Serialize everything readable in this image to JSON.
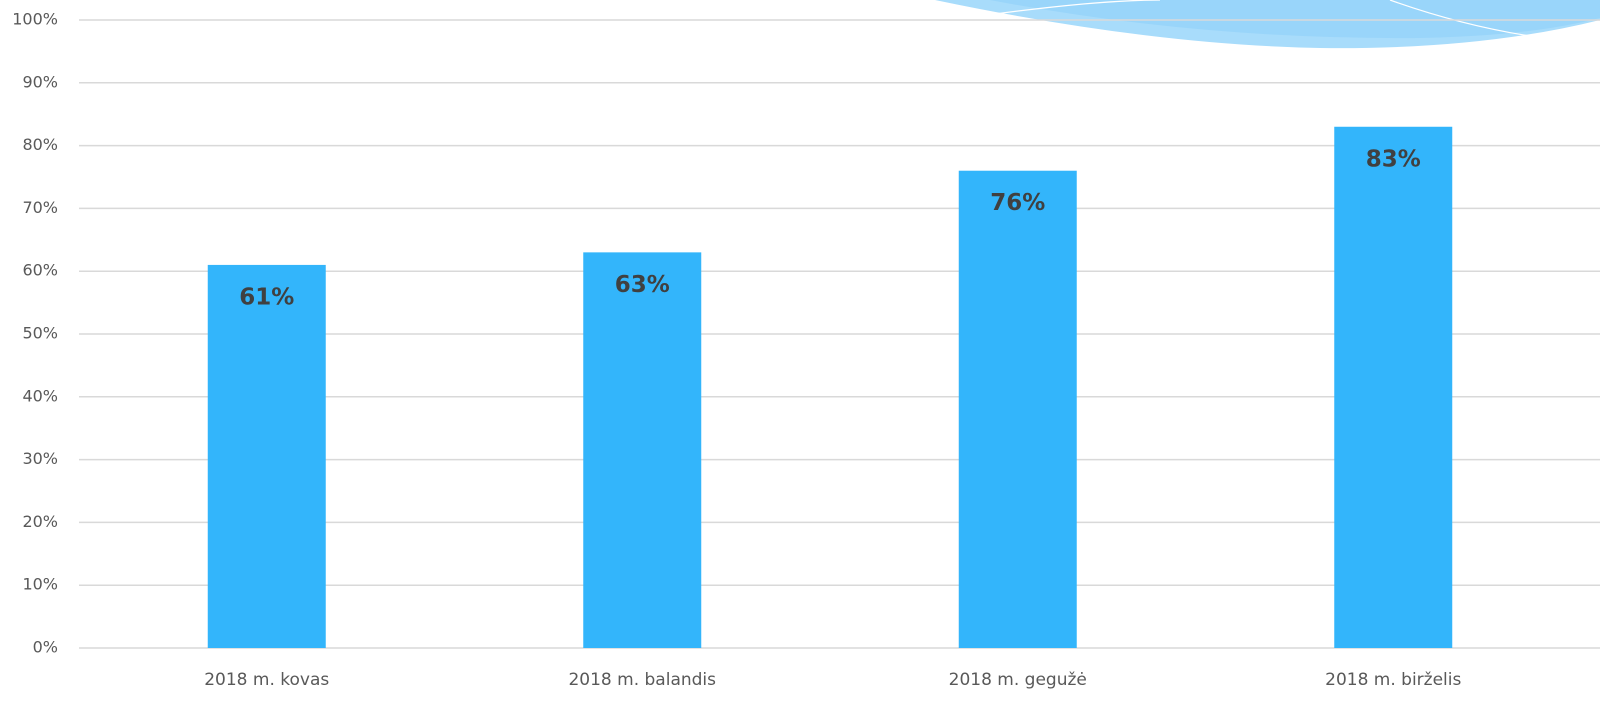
{
  "chart_data": {
    "type": "bar",
    "categories": [
      "2018 m. kovas",
      "2018 m. balandis",
      "2018 m. gegužė",
      "2018 m. birželis"
    ],
    "values": [
      61,
      63,
      76,
      83
    ],
    "value_labels": [
      "61%",
      "63%",
      "76%",
      "83%"
    ],
    "color": "#33b5fb",
    "ylim": [
      0,
      100
    ],
    "yticks": [
      {
        "value": 0,
        "label": "0%"
      },
      {
        "value": 10,
        "label": "10%"
      },
      {
        "value": 20,
        "label": "20%"
      },
      {
        "value": 30,
        "label": "30%"
      },
      {
        "value": 40,
        "label": "40%"
      },
      {
        "value": 50,
        "label": "50%"
      },
      {
        "value": 60,
        "label": "60%"
      },
      {
        "value": 70,
        "label": "70%"
      },
      {
        "value": 80,
        "label": "80%"
      },
      {
        "value": 90,
        "label": "90%"
      },
      {
        "value": 100,
        "label": "100%"
      }
    ],
    "grid": true
  }
}
